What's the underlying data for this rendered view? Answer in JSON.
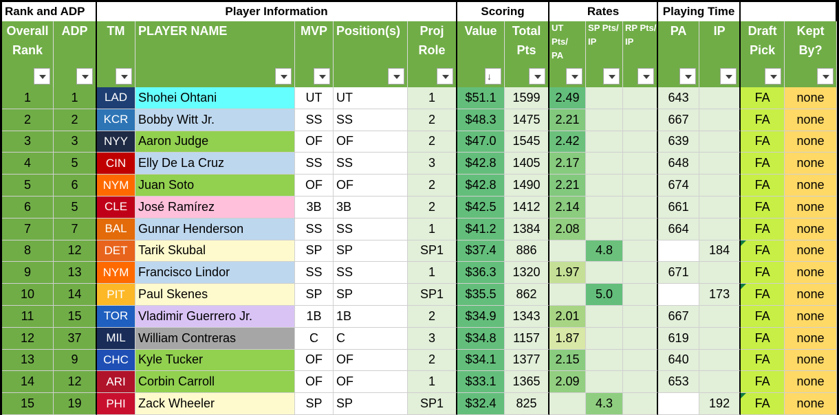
{
  "groups": {
    "rank_adp": "Rank and ADP",
    "player_info": "Player Information",
    "scoring": "Scoring",
    "rates": "Rates",
    "playing_time": "Playing Time"
  },
  "headers": {
    "overall_rank": "Overall Rank",
    "adp": "ADP",
    "tm": "TM",
    "player_name": "PLAYER NAME",
    "mvp": "MVP",
    "positions": "Position(s)",
    "proj_role": "Proj Role",
    "value": "Value",
    "total_pts": "Total Pts",
    "ut_rate": "UT Pts/ PA",
    "sp_rate": "SP Pts/ IP",
    "rp_rate": "RP Pts/ IP",
    "pa": "PA",
    "ip": "IP",
    "draft_pick": "Draft Pick",
    "kept_by": "Kept By?",
    "sort_indicator": "↓"
  },
  "colors": {
    "header_green": "#70ad47",
    "value_green": "#63be7b",
    "pick_green": "#c7ef45",
    "kept_yellow": "#ffd966",
    "row_mint": "#e2efd9"
  },
  "rows": [
    {
      "rank": "1",
      "adp": "1",
      "tm": "LAD",
      "tm_bg": "#1e3f73",
      "name": "Shohei Ohtani",
      "name_bg": "#66ffff",
      "mvp": "UT",
      "pos": "UT",
      "role": "1",
      "value": "$51.1",
      "pts": "1599",
      "ut": "2.49",
      "ut_bg": "#63be7b",
      "sp": "",
      "sp_bg": "",
      "rp": "",
      "pa": "643",
      "ip": "",
      "note": false
    },
    {
      "rank": "2",
      "adp": "2",
      "tm": "KCR",
      "tm_bg": "#2e75b6",
      "name": "Bobby Witt Jr.",
      "name_bg": "#bdd7ee",
      "mvp": "SS",
      "pos": "SS",
      "role": "2",
      "value": "$48.3",
      "pts": "1475",
      "ut": "2.21",
      "ut_bg": "#82c97e",
      "sp": "",
      "sp_bg": "",
      "rp": "",
      "pa": "667",
      "ip": "",
      "note": false
    },
    {
      "rank": "3",
      "adp": "3",
      "tm": "NYY",
      "tm_bg": "#1f2a44",
      "name": "Aaron Judge",
      "name_bg": "#92d050",
      "mvp": "OF",
      "pos": "OF",
      "role": "2",
      "value": "$47.0",
      "pts": "1545",
      "ut": "2.42",
      "ut_bg": "#6bc17c",
      "sp": "",
      "sp_bg": "",
      "rp": "",
      "pa": "639",
      "ip": "",
      "note": false
    },
    {
      "rank": "4",
      "adp": "5",
      "tm": "CIN",
      "tm_bg": "#c00000",
      "name": "Elly De La Cruz",
      "name_bg": "#bdd7ee",
      "mvp": "SS",
      "pos": "SS",
      "role": "3",
      "value": "$42.8",
      "pts": "1405",
      "ut": "2.17",
      "ut_bg": "#87cb7e",
      "sp": "",
      "sp_bg": "",
      "rp": "",
      "pa": "648",
      "ip": "",
      "note": false
    },
    {
      "rank": "5",
      "adp": "6",
      "tm": "NYM",
      "tm_bg": "#ff6a00",
      "name": "Juan Soto",
      "name_bg": "#92d050",
      "mvp": "OF",
      "pos": "OF",
      "role": "2",
      "value": "$42.8",
      "pts": "1490",
      "ut": "2.21",
      "ut_bg": "#82c97e",
      "sp": "",
      "sp_bg": "",
      "rp": "",
      "pa": "674",
      "ip": "",
      "note": false
    },
    {
      "rank": "6",
      "adp": "5",
      "tm": "CLE",
      "tm_bg": "#c00018",
      "name": "José Ramírez",
      "name_bg": "#ffc0dc",
      "mvp": "3B",
      "pos": "3B",
      "role": "2",
      "value": "$42.5",
      "pts": "1412",
      "ut": "2.14",
      "ut_bg": "#8bcc7f",
      "sp": "",
      "sp_bg": "",
      "rp": "",
      "pa": "661",
      "ip": "",
      "note": false
    },
    {
      "rank": "7",
      "adp": "7",
      "tm": "BAL",
      "tm_bg": "#e36b0a",
      "name": "Gunnar Henderson",
      "name_bg": "#bdd7ee",
      "mvp": "SS",
      "pos": "SS",
      "role": "1",
      "value": "$41.2",
      "pts": "1384",
      "ut": "2.08",
      "ut_bg": "#93cf80",
      "sp": "",
      "sp_bg": "",
      "rp": "",
      "pa": "664",
      "ip": "",
      "note": false
    },
    {
      "rank": "8",
      "adp": "12",
      "tm": "DET",
      "tm_bg": "#e8641c",
      "name": "Tarik Skubal",
      "name_bg": "#fffacd",
      "mvp": "SP",
      "pos": "SP",
      "role": "SP1",
      "value": "$37.4",
      "pts": "886",
      "ut": "",
      "ut_bg": "",
      "sp": "4.8",
      "sp_bg": "#6bc17c",
      "rp": "",
      "pa": "",
      "ip": "184",
      "note": true
    },
    {
      "rank": "9",
      "adp": "13",
      "tm": "NYM",
      "tm_bg": "#ff6a00",
      "name": "Francisco Lindor",
      "name_bg": "#bdd7ee",
      "mvp": "SS",
      "pos": "SS",
      "role": "1",
      "value": "$36.3",
      "pts": "1320",
      "ut": "1.97",
      "ut_bg": "#c5e096",
      "sp": "",
      "sp_bg": "",
      "rp": "",
      "pa": "671",
      "ip": "",
      "note": false
    },
    {
      "rank": "10",
      "adp": "14",
      "tm": "PIT",
      "tm_bg": "#fdb827",
      "name": "Paul Skenes",
      "name_bg": "#fffacd",
      "mvp": "SP",
      "pos": "SP",
      "role": "SP1",
      "value": "$35.5",
      "pts": "862",
      "ut": "",
      "ut_bg": "",
      "sp": "5.0",
      "sp_bg": "#63be7b",
      "rp": "",
      "pa": "",
      "ip": "173",
      "note": true
    },
    {
      "rank": "11",
      "adp": "15",
      "tm": "TOR",
      "tm_bg": "#1f5fbf",
      "name": "Vladimir Guerrero Jr.",
      "name_bg": "#d9c3f5",
      "mvp": "1B",
      "pos": "1B",
      "role": "2",
      "value": "$34.9",
      "pts": "1343",
      "ut": "2.01",
      "ut_bg": "#a7d584",
      "sp": "",
      "sp_bg": "",
      "rp": "",
      "pa": "667",
      "ip": "",
      "note": false
    },
    {
      "rank": "12",
      "adp": "37",
      "tm": "MIL",
      "tm_bg": "#1a2d58",
      "name": "William Contreras",
      "name_bg": "#a6a6a6",
      "mvp": "C",
      "pos": "C",
      "role": "3",
      "value": "$34.8",
      "pts": "1157",
      "ut": "1.87",
      "ut_bg": "#d8e8a6",
      "sp": "",
      "sp_bg": "",
      "rp": "",
      "pa": "619",
      "ip": "",
      "note": false
    },
    {
      "rank": "13",
      "adp": "9",
      "tm": "CHC",
      "tm_bg": "#1f4fb5",
      "name": "Kyle Tucker",
      "name_bg": "#92d050",
      "mvp": "OF",
      "pos": "OF",
      "role": "2",
      "value": "$34.1",
      "pts": "1377",
      "ut": "2.15",
      "ut_bg": "#8acc7f",
      "sp": "",
      "sp_bg": "",
      "rp": "",
      "pa": "640",
      "ip": "",
      "note": false
    },
    {
      "rank": "14",
      "adp": "12",
      "tm": "ARI",
      "tm_bg": "#b0142b",
      "name": "Corbin Carroll",
      "name_bg": "#92d050",
      "mvp": "OF",
      "pos": "OF",
      "role": "1",
      "value": "$33.1",
      "pts": "1365",
      "ut": "2.09",
      "ut_bg": "#92cf80",
      "sp": "",
      "sp_bg": "",
      "rp": "",
      "pa": "653",
      "ip": "",
      "note": false
    },
    {
      "rank": "15",
      "adp": "19",
      "tm": "PHI",
      "tm_bg": "#c8102e",
      "name": "Zack Wheeler",
      "name_bg": "#fffacd",
      "mvp": "SP",
      "pos": "SP",
      "role": "SP1",
      "value": "$32.4",
      "pts": "825",
      "ut": "",
      "ut_bg": "",
      "sp": "4.3",
      "sp_bg": "#8fce80",
      "rp": "",
      "pa": "",
      "ip": "192",
      "note": true
    }
  ],
  "draft_pick": "FA",
  "kept_by": "none"
}
